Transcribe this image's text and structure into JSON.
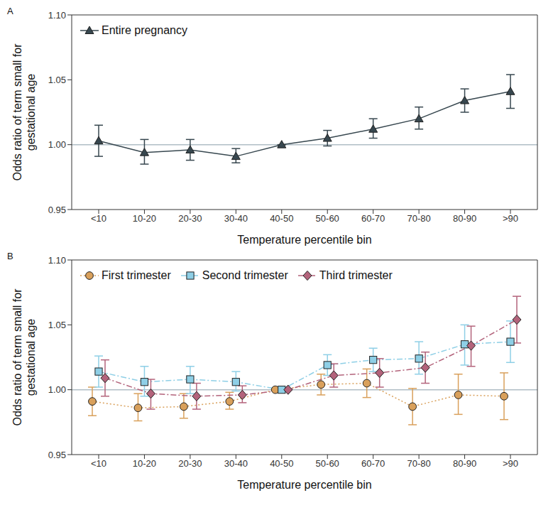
{
  "chart_data": [
    {
      "type": "line",
      "panel": "A",
      "categories": [
        "<10",
        "10-20",
        "20-30",
        "30-40",
        "40-50",
        "50-60",
        "60-70",
        "70-80",
        "80-90",
        ">90"
      ],
      "x_label": "Temperature percentile bin",
      "y_label": "Odds ratio of term small for gestational age",
      "ylim": [
        0.95,
        1.1
      ],
      "yticks": [
        {
          "value": 0.95,
          "label": "0.95"
        },
        {
          "value": 1.0,
          "label": "1.00"
        },
        {
          "value": 1.05,
          "label": "1.05"
        },
        {
          "value": 1.1,
          "label": "1.10"
        }
      ],
      "reference_value": 1.0,
      "legend": "upper left",
      "series": [
        {
          "name": "Entire pregnancy",
          "color": "#37474f",
          "marker": "triangle",
          "line_style": "solid",
          "values": [
            1.003,
            0.994,
            0.996,
            0.991,
            1.0,
            1.005,
            1.012,
            1.02,
            1.034,
            1.041
          ],
          "errors": [
            [
              0.991,
              1.015
            ],
            [
              0.985,
              1.004
            ],
            [
              0.988,
              1.004
            ],
            [
              0.986,
              0.997
            ],
            [
              1.0,
              1.0
            ],
            [
              0.999,
              1.011
            ],
            [
              1.005,
              1.02
            ],
            [
              1.012,
              1.029
            ],
            [
              1.025,
              1.043
            ],
            [
              1.028,
              1.054
            ]
          ]
        }
      ]
    },
    {
      "type": "line",
      "panel": "B",
      "categories": [
        "<10",
        "10-20",
        "20-30",
        "30-40",
        "40-50",
        "50-60",
        "60-70",
        "70-80",
        "80-90",
        ">90"
      ],
      "x_label": "Temperature percentile bin",
      "y_label": "Odds ratio of term small for gestational age",
      "ylim": [
        0.95,
        1.1
      ],
      "yticks": [
        {
          "value": 0.95,
          "label": "0.95"
        },
        {
          "value": 1.0,
          "label": "1.00"
        },
        {
          "value": 1.05,
          "label": "1.05"
        },
        {
          "value": 1.1,
          "label": "1.10"
        }
      ],
      "reference_value": 1.0,
      "legend": "upper left",
      "series": [
        {
          "name": "First trimester",
          "color": "#d9a05b",
          "marker": "circle",
          "line_style": "dotted",
          "values": [
            0.991,
            0.986,
            0.987,
            0.991,
            1.0,
            1.004,
            1.005,
            0.987,
            0.996,
            0.995
          ],
          "errors": [
            [
              0.98,
              1.002
            ],
            [
              0.976,
              0.997
            ],
            [
              0.978,
              0.997
            ],
            [
              0.985,
              0.998
            ],
            [
              1.0,
              1.0
            ],
            [
              0.996,
              1.012
            ],
            [
              0.994,
              1.016
            ],
            [
              0.973,
              1.001
            ],
            [
              0.981,
              1.012
            ],
            [
              0.977,
              1.013
            ]
          ]
        },
        {
          "name": "Second trimester",
          "color": "#8ecfe6",
          "marker": "square",
          "line_style": "dashdot",
          "values": [
            1.014,
            1.006,
            1.008,
            1.006,
            1.0,
            1.019,
            1.023,
            1.024,
            1.035,
            1.037
          ],
          "errors": [
            [
              1.002,
              1.026
            ],
            [
              0.995,
              1.018
            ],
            [
              0.997,
              1.018
            ],
            [
              0.999,
              1.014
            ],
            [
              1.0,
              1.0
            ],
            [
              1.011,
              1.027
            ],
            [
              1.014,
              1.032
            ],
            [
              1.012,
              1.037
            ],
            [
              1.019,
              1.05
            ],
            [
              1.021,
              1.053
            ]
          ]
        },
        {
          "name": "Third trimester",
          "color": "#b3637b",
          "marker": "diamond",
          "line_style": "dashdot",
          "values": [
            1.009,
            0.997,
            0.995,
            0.996,
            1.0,
            1.011,
            1.013,
            1.017,
            1.034,
            1.054
          ],
          "errors": [
            [
              0.995,
              1.023
            ],
            [
              0.985,
              1.008
            ],
            [
              0.985,
              1.005
            ],
            [
              0.99,
              1.003
            ],
            [
              1.0,
              1.0
            ],
            [
              1.002,
              1.02
            ],
            [
              1.002,
              1.024
            ],
            [
              1.005,
              1.029
            ],
            [
              1.018,
              1.049
            ],
            [
              1.036,
              1.072
            ]
          ]
        }
      ]
    }
  ]
}
